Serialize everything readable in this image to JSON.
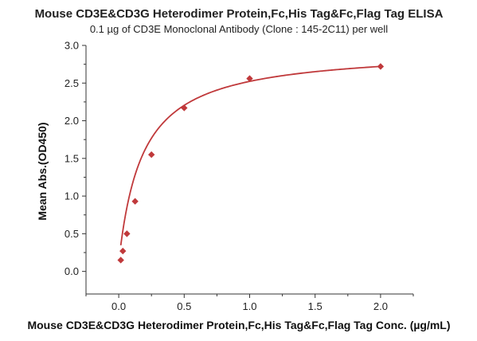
{
  "chart_data": {
    "type": "scatter",
    "title": "Mouse CD3E&CD3G Heterodimer Protein,Fc,His Tag&Fc,Flag Tag ELISA",
    "subtitle": "0.1 µg of CD3E Monoclonal Antibody (Clone : 145-2C11) per well",
    "xlabel": "Mouse CD3E&CD3G Heterodimer Protein,Fc,His Tag&Fc,Flag Tag Conc. (µg/mL)",
    "ylabel": "Mean Abs.(OD450)",
    "xlim": [
      -0.25,
      2.25
    ],
    "ylim": [
      -0.3,
      3.0
    ],
    "x_ticks": [
      0.0,
      0.5,
      1.0,
      1.5,
      2.0
    ],
    "x_tick_labels": [
      "0.0",
      "0.5",
      "1.0",
      "1.5",
      "2.0"
    ],
    "y_ticks": [
      0.0,
      0.5,
      1.0,
      1.5,
      2.0,
      2.5,
      3.0
    ],
    "y_tick_labels": [
      "0.0",
      "0.5",
      "1.0",
      "1.5",
      "2.0",
      "2.5",
      "3.0"
    ],
    "grid": false,
    "color": "#c0393b",
    "series": [
      {
        "marker": "diamond",
        "x": [
          0.0156,
          0.0313,
          0.0625,
          0.125,
          0.25,
          0.5,
          1.0,
          2.0
        ],
        "y": [
          0.15,
          0.27,
          0.5,
          0.93,
          1.55,
          2.17,
          2.56,
          2.72
        ]
      }
    ],
    "fit_curve": {
      "type": "hyperbolic",
      "a": 0.12,
      "bmax": 2.955,
      "kd": 0.18
    }
  }
}
